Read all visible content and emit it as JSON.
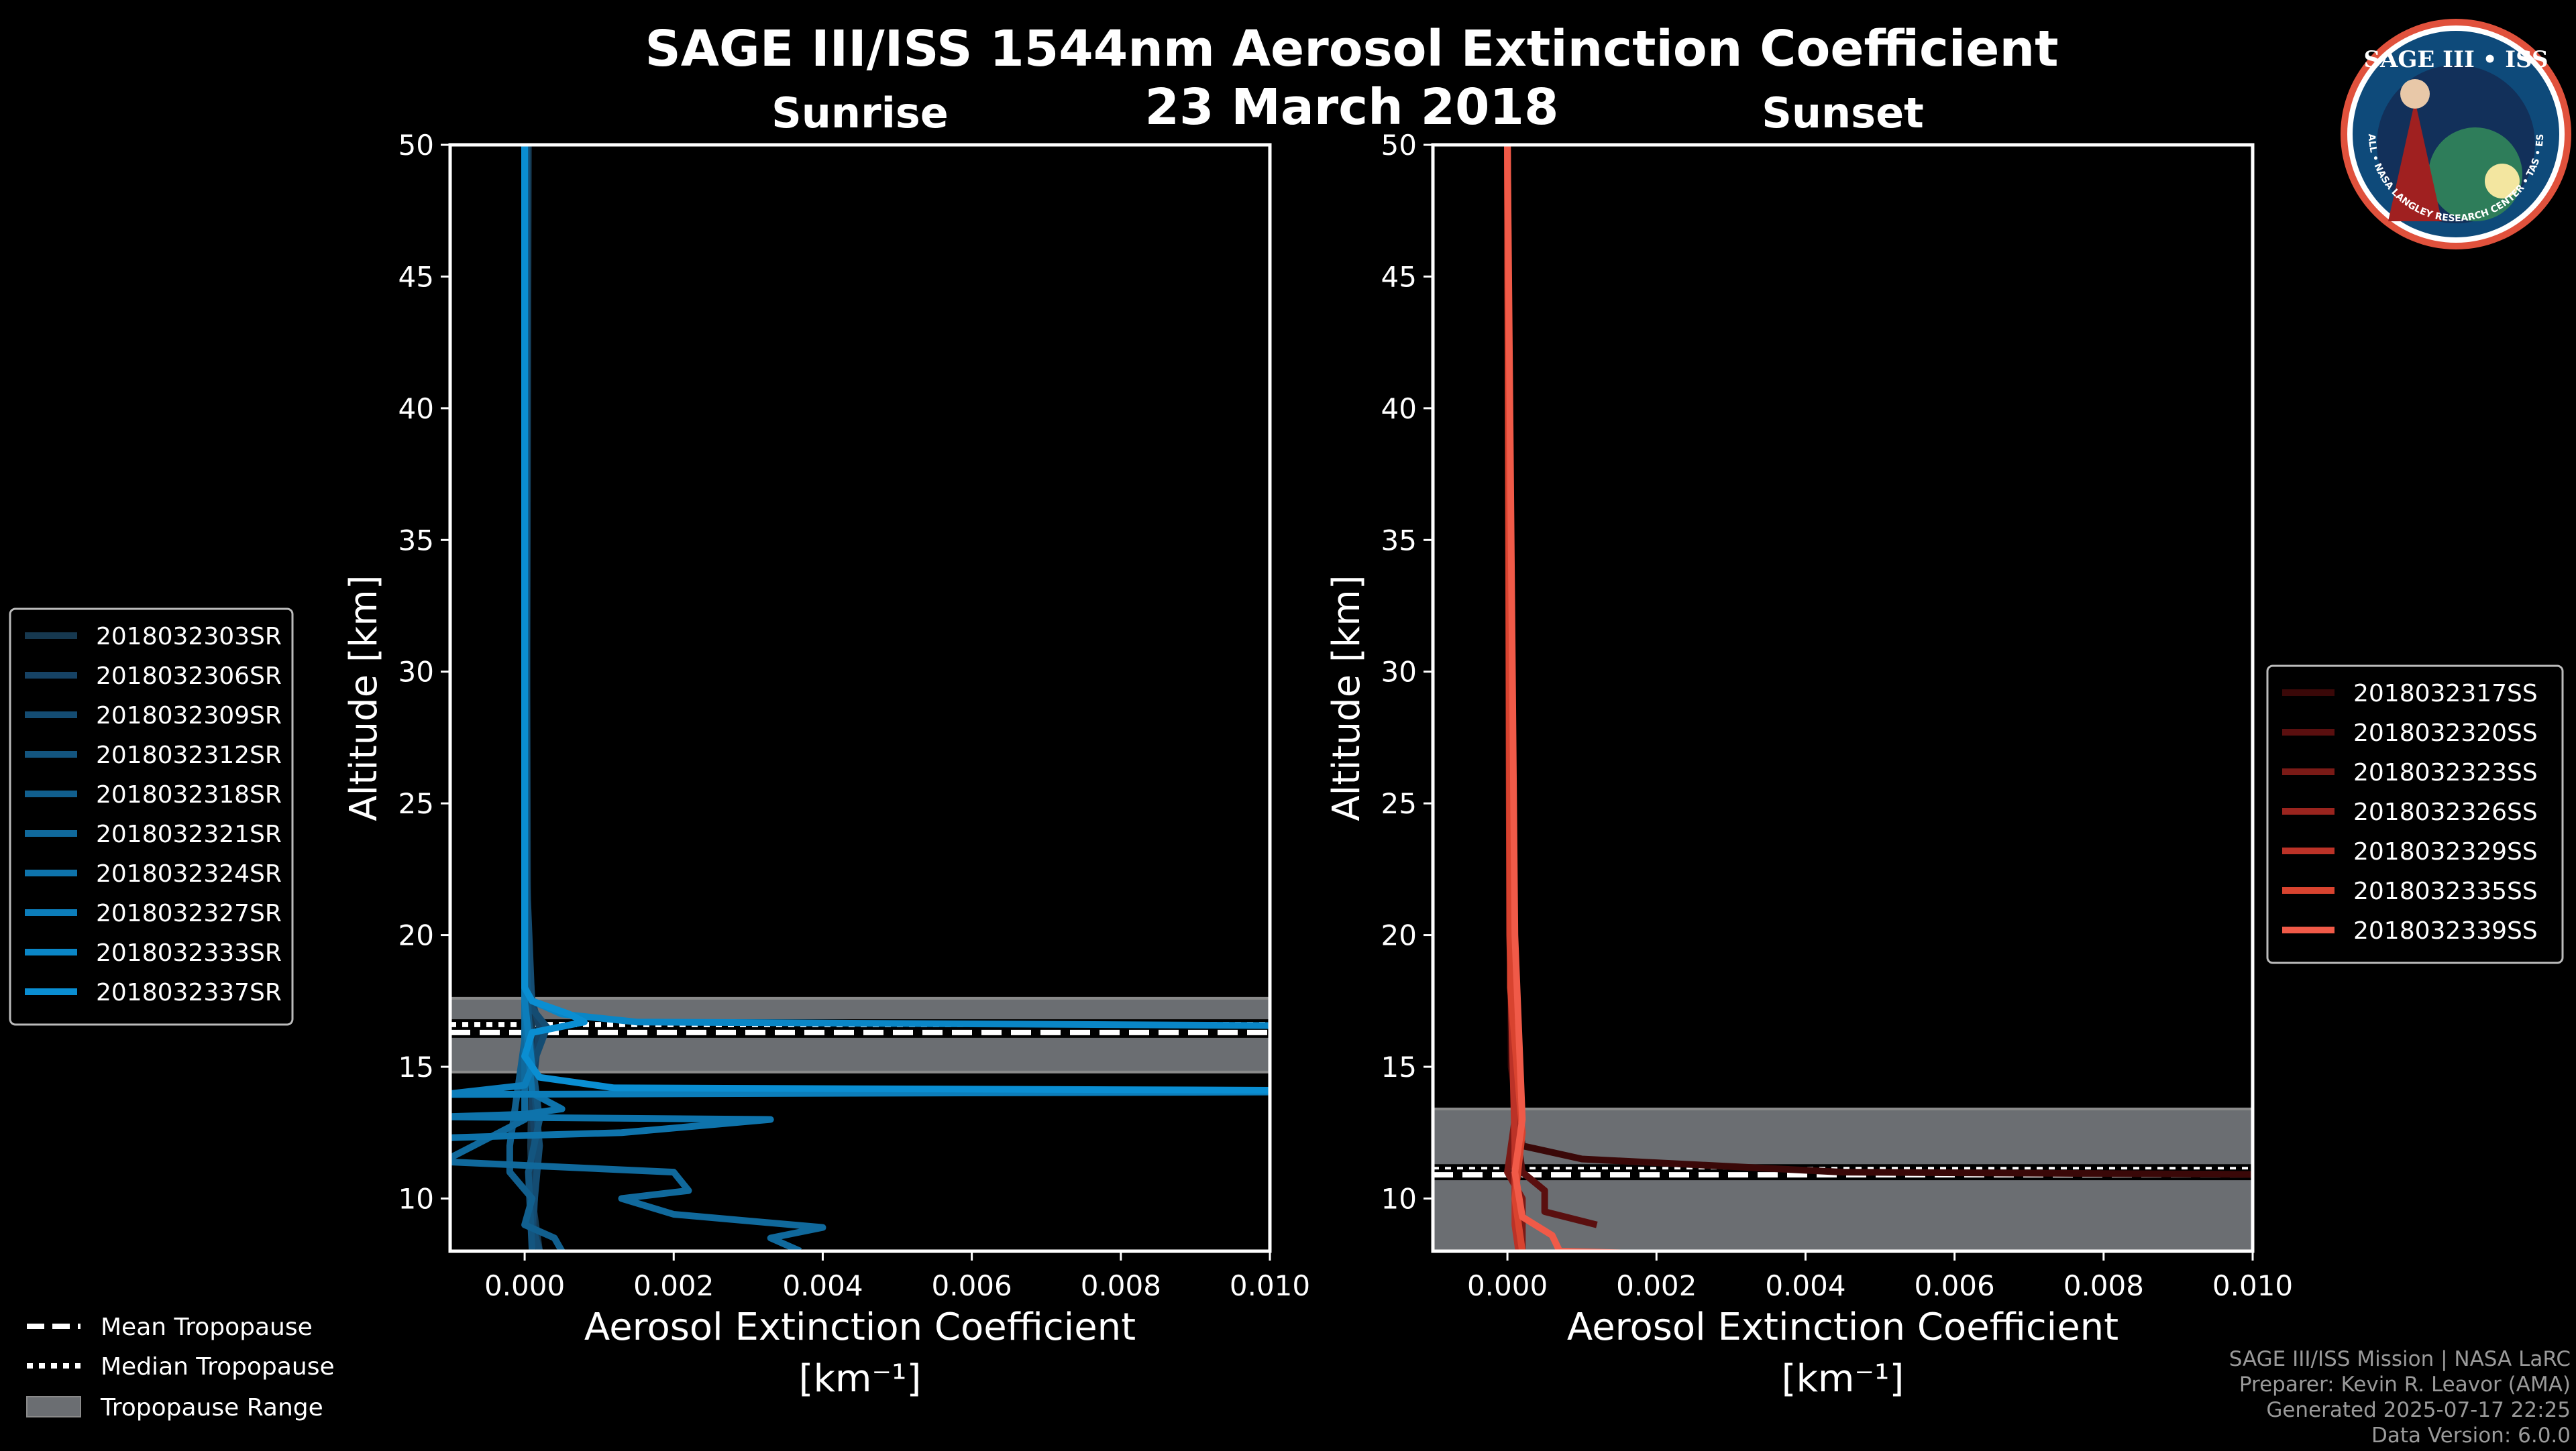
{
  "title_line1": "SAGE III/ISS 1544nm Aerosol Extinction Coefficient",
  "title_line2": "23 March 2018",
  "logo_text": "SAGE III • ISS",
  "logo_ring_text": "BALL • NASA LANGLEY RESEARCH CENTER • TAS • ESA",
  "credits": [
    "SAGE III/ISS Mission | NASA LaRC",
    "Preparer: Kevin R. Leavor (AMA)",
    "Generated 2025-07-17 22:25",
    "Data Version: 6.0.0"
  ],
  "tropopause_legend": {
    "mean": "Mean Tropopause",
    "median": "Median Tropopause",
    "range": "Tropopause Range"
  },
  "chart_data": [
    {
      "type": "line",
      "title": "Sunrise",
      "xlabel": "Aerosol Extinction Coefficient",
      "xlabel_unit": "[km⁻¹]",
      "ylabel": "Altitude [km]",
      "xlim": [
        -0.001,
        0.01
      ],
      "ylim": [
        8,
        50
      ],
      "xticks": [
        "0.000",
        "0.002",
        "0.004",
        "0.006",
        "0.008",
        "0.010"
      ],
      "xtick_values": [
        0,
        0.002,
        0.004,
        0.006,
        0.008,
        0.01
      ],
      "yticks": [
        10,
        15,
        20,
        25,
        30,
        35,
        40,
        45,
        50
      ],
      "tropopause": {
        "mean": 16.3,
        "median": 16.6,
        "range": [
          14.8,
          17.6
        ]
      },
      "legend_position": "left",
      "series": [
        {
          "name": "2018032303SR",
          "color": "#16384f",
          "points": [
            [
              5e-05,
              50
            ],
            [
              3e-05,
              30
            ],
            [
              4e-05,
              20
            ],
            [
              0.0001,
              17.5
            ],
            [
              0.0001,
              15
            ],
            [
              8e-05,
              12
            ],
            [
              0.0001,
              10
            ],
            [
              0.0002,
              8
            ]
          ]
        },
        {
          "name": "2018032306SR",
          "color": "#164264",
          "points": [
            [
              2e-05,
              50
            ],
            [
              2e-05,
              25
            ],
            [
              5e-05,
              18
            ],
            [
              0.0002,
              16.5
            ],
            [
              0.0001,
              14
            ],
            [
              0.00015,
              11
            ],
            [
              0.0001,
              8
            ]
          ]
        },
        {
          "name": "2018032309SR",
          "color": "#144c72",
          "points": [
            [
              3e-05,
              50
            ],
            [
              3e-05,
              22
            ],
            [
              0.0001,
              17.2
            ],
            [
              0.0003,
              16.5
            ],
            [
              0.0001,
              15
            ],
            [
              0.0002,
              12
            ],
            [
              0.0001,
              9
            ],
            [
              0.0002,
              8
            ]
          ]
        },
        {
          "name": "2018032312SR",
          "color": "#13557f",
          "points": [
            [
              0,
              50
            ],
            [
              2e-05,
              20
            ],
            [
              5e-05,
              17
            ],
            [
              0.0001,
              15.2
            ],
            [
              0.0002,
              13
            ],
            [
              5e-05,
              11
            ],
            [
              0.0001,
              8
            ]
          ]
        },
        {
          "name": "2018032318SR",
          "color": "#115f8e",
          "points": [
            [
              0,
              50
            ],
            [
              0,
              16
            ],
            [
              -0.0002,
              12
            ],
            [
              -0.0002,
              11
            ],
            [
              0.0001,
              10
            ],
            [
              0,
              9
            ],
            [
              0.0004,
              8.5
            ],
            [
              0.0005,
              8
            ]
          ]
        },
        {
          "name": "2018032321SR",
          "color": "#10699c",
          "points": [
            [
              0,
              50
            ],
            [
              0,
              13
            ],
            [
              -0.0011,
              11.4
            ],
            [
              0.002,
              11.0
            ],
            [
              0.0022,
              10.3
            ],
            [
              0.0013,
              10.0
            ],
            [
              0.002,
              9.4
            ],
            [
              0.004,
              8.9
            ],
            [
              0.0033,
              8.5
            ],
            [
              0.0037,
              8
            ]
          ]
        },
        {
          "name": "2018032324SR",
          "color": "#0e73ab",
          "points": [
            [
              0,
              50
            ],
            [
              0,
              17
            ],
            [
              0.0001,
              14
            ],
            [
              0.0005,
              13.4
            ],
            [
              0,
              13.2
            ],
            [
              -0.0011,
              13.1
            ],
            [
              0.0033,
              13.0
            ],
            [
              0.0013,
              12.5
            ],
            [
              -0.0011,
              12.3
            ]
          ]
        },
        {
          "name": "2018032327SR",
          "color": "#0c7dba",
          "points": [
            [
              0,
              50
            ],
            [
              0,
              17.5
            ],
            [
              0.0001,
              15
            ],
            [
              0,
              14.3
            ],
            [
              -0.0011,
              13.95
            ],
            [
              0.011,
              14.05
            ]
          ]
        },
        {
          "name": "2018032333SR",
          "color": "#0a86c6",
          "points": [
            [
              0,
              50
            ],
            [
              0,
              18
            ],
            [
              0.0001,
              17.5
            ],
            [
              0.0005,
              17
            ],
            [
              0.0015,
              16.7
            ],
            [
              0.011,
              16.55
            ]
          ]
        },
        {
          "name": "2018032337SR",
          "color": "#0a8ed2",
          "points": [
            [
              0,
              50
            ],
            [
              0,
              18
            ],
            [
              0.0001,
              17.5
            ],
            [
              0.0006,
              17
            ],
            [
              0.0008,
              16.7
            ],
            [
              0.0001,
              16.3
            ],
            [
              0,
              15.4
            ],
            [
              0.0002,
              14.6
            ],
            [
              0.0012,
              14.2
            ],
            [
              0.011,
              14.1
            ]
          ]
        }
      ]
    },
    {
      "type": "line",
      "title": "Sunset",
      "xlabel": "Aerosol Extinction Coefficient",
      "xlabel_unit": "[km⁻¹]",
      "ylabel": "Altitude [km]",
      "xlim": [
        -0.001,
        0.01
      ],
      "ylim": [
        8,
        50
      ],
      "xticks": [
        "0.000",
        "0.002",
        "0.004",
        "0.006",
        "0.008",
        "0.010"
      ],
      "xtick_values": [
        0,
        0.002,
        0.004,
        0.006,
        0.008,
        0.01
      ],
      "yticks": [
        10,
        15,
        20,
        25,
        30,
        35,
        40,
        45,
        50
      ],
      "tropopause": {
        "mean": 10.9,
        "median": 11.1,
        "range": [
          8,
          13.4
        ]
      },
      "legend_position": "right",
      "series": [
        {
          "name": "2018032317SS",
          "color": "#3a0808",
          "points": [
            [
              0,
              50
            ],
            [
              5e-05,
              15
            ],
            [
              0.0002,
              12
            ],
            [
              0.001,
              11.5
            ],
            [
              0.0045,
              11
            ],
            [
              0.011,
              10.9
            ]
          ]
        },
        {
          "name": "2018032320SS",
          "color": "#5a0f0f",
          "points": [
            [
              0,
              50
            ],
            [
              0.0001,
              13
            ],
            [
              0.0002,
              11
            ],
            [
              0.0005,
              10.3
            ],
            [
              0.0005,
              9.5
            ],
            [
              0.0012,
              9.0
            ]
          ]
        },
        {
          "name": "2018032323SS",
          "color": "#7a1a16",
          "points": [
            [
              0,
              50
            ],
            [
              0.0001,
              13
            ],
            [
              0,
              11
            ],
            [
              0.0002,
              10
            ],
            [
              0.0002,
              8
            ]
          ]
        },
        {
          "name": "2018032326SS",
          "color": "#9a241e",
          "points": [
            [
              0,
              50
            ],
            [
              5e-05,
              20
            ],
            [
              0.0001,
              13
            ],
            [
              0.0001,
              10
            ],
            [
              0.0002,
              8
            ]
          ]
        },
        {
          "name": "2018032329SS",
          "color": "#bb3227",
          "points": [
            [
              0,
              50
            ],
            [
              3e-05,
              20
            ],
            [
              0.0001,
              12
            ],
            [
              0.0001,
              9
            ],
            [
              0.00015,
              8
            ]
          ]
        },
        {
          "name": "2018032335SS",
          "color": "#d8432f",
          "points": [
            [
              0,
              50
            ],
            [
              4e-05,
              18
            ],
            [
              0.0002,
              12.5
            ],
            [
              0.0001,
              10
            ],
            [
              0.0002,
              8
            ]
          ]
        },
        {
          "name": "2018032339SS",
          "color": "#f05a48",
          "points": [
            [
              0,
              50
            ],
            [
              0.0001,
              20
            ],
            [
              0.0002,
              13
            ],
            [
              0.0001,
              11
            ],
            [
              0.0002,
              9.3
            ],
            [
              0.0006,
              8.6
            ],
            [
              0.0007,
              8.0
            ],
            [
              0.002,
              7.9
            ]
          ]
        }
      ]
    }
  ]
}
